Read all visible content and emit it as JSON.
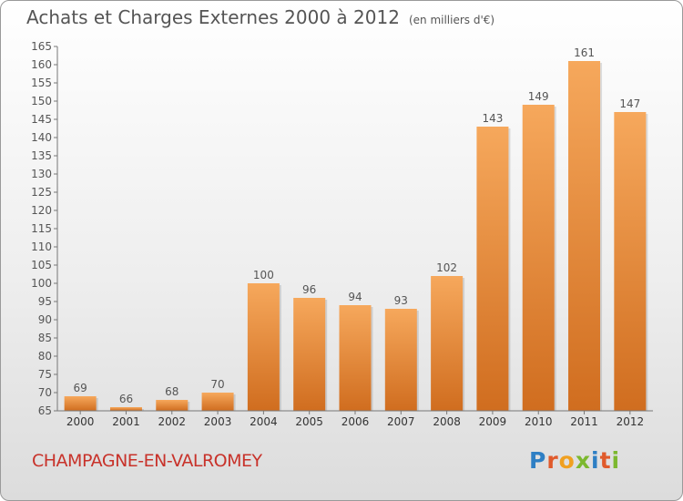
{
  "header": {
    "title": "Achats et Charges Externes 2000 à 2012",
    "subtitle": "(en milliers d'€)"
  },
  "footer": {
    "city": "CHAMPAGNE-EN-VALROMEY",
    "logo_letters": [
      "P",
      "r",
      "o",
      "x",
      "i",
      "t",
      "i"
    ],
    "logo_colors": [
      "#2e7fc4",
      "#e05a2b",
      "#f0a020",
      "#7cb82f",
      "#2e7fc4",
      "#e05a2b",
      "#7cb82f"
    ]
  },
  "colors": {
    "bar_light": "#f6a85c",
    "bar_dark": "#d06d1f",
    "text": "#555555"
  },
  "chart_data": {
    "type": "bar",
    "categories": [
      "2000",
      "2001",
      "2002",
      "2003",
      "2004",
      "2005",
      "2006",
      "2007",
      "2008",
      "2009",
      "2010",
      "2011",
      "2012"
    ],
    "values": [
      69,
      66,
      68,
      70,
      100,
      96,
      94,
      93,
      102,
      143,
      149,
      161,
      147
    ],
    "ylim": [
      65,
      165
    ],
    "ytick_step": 5,
    "grid": false
  }
}
